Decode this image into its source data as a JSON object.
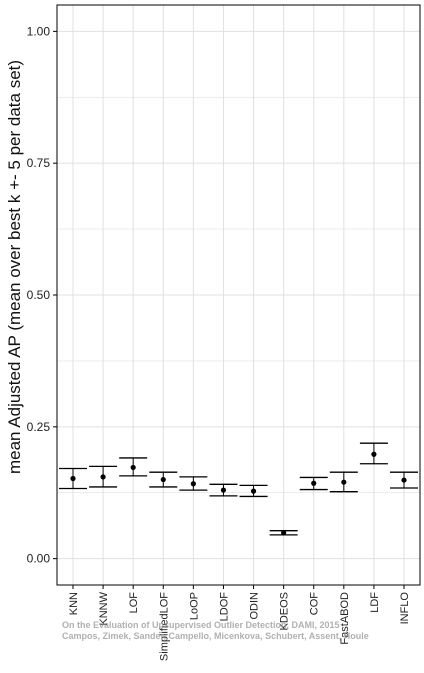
{
  "chart_data": {
    "type": "errorbar",
    "title": "",
    "xlabel": "",
    "ylabel": "mean Adjusted AP (mean over best k +- 5 per data set)",
    "ylim": [
      -0.05,
      1.05
    ],
    "yticks": [
      0.0,
      0.25,
      0.5,
      0.75,
      1.0
    ],
    "ytick_labels": [
      "0.00",
      "0.25",
      "0.50",
      "0.75",
      "1.00"
    ],
    "grid": true,
    "categories": [
      "KNN",
      "KNNW",
      "LOF",
      "SimplifiedLOF",
      "LoOP",
      "LDOF",
      "ODIN",
      "KDEOS",
      "COF",
      "FastABOD",
      "LDF",
      "INFLO"
    ],
    "values": [
      0.152,
      0.155,
      0.173,
      0.15,
      0.142,
      0.13,
      0.128,
      0.049,
      0.143,
      0.145,
      0.198,
      0.149
    ],
    "lower": [
      0.133,
      0.136,
      0.157,
      0.136,
      0.13,
      0.119,
      0.118,
      0.045,
      0.131,
      0.127,
      0.18,
      0.134
    ],
    "upper": [
      0.171,
      0.175,
      0.191,
      0.164,
      0.155,
      0.141,
      0.139,
      0.053,
      0.154,
      0.164,
      0.219,
      0.164
    ],
    "colors": {
      "grid": "#e0e0e0",
      "axis": "#000000",
      "mark": "#000000"
    }
  },
  "watermark": {
    "line1": "On the Evaluation of Unsupervised Outlier Detection, DAMI, 2015",
    "line2": "Campos, Zimek, Sander, Campello, Micenkova, Schubert, Assent, Houle"
  }
}
